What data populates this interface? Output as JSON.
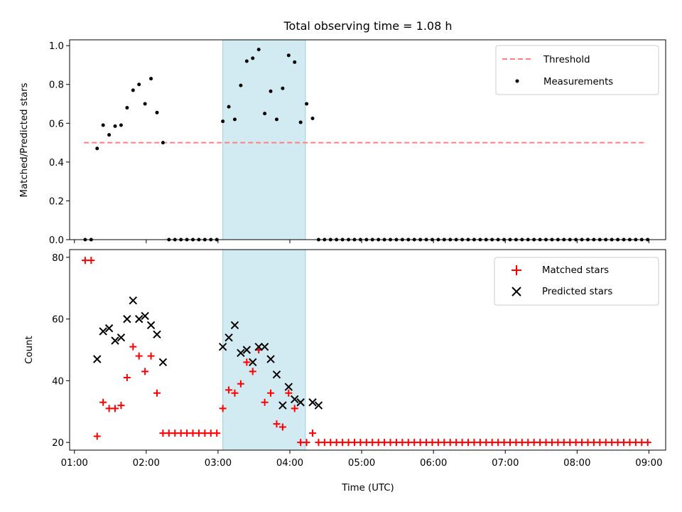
{
  "figure": {
    "title": "Total observing time = 1.08 h",
    "xlabel": "Time (UTC)"
  },
  "chart_data": [
    {
      "type": "scatter",
      "ylabel": "Matched/Predicted stars",
      "xlim": [
        "00:56",
        "09:14"
      ],
      "ylim": [
        0,
        1.03
      ],
      "yticks": [
        "0.0",
        "0.2",
        "0.4",
        "0.6",
        "0.8",
        "1.0"
      ],
      "xticks": [
        "01:00",
        "02:00",
        "03:00",
        "04:00",
        "05:00",
        "06:00",
        "07:00",
        "08:00",
        "09:00"
      ],
      "highlight_span": {
        "x": [
          "03:04",
          "04:13"
        ],
        "color": "#add8e6"
      },
      "legend": {
        "position": "top-right"
      },
      "threshold": {
        "name": "Threshold",
        "value": 0.5,
        "x": [
          "01:08",
          "08:58"
        ],
        "color": "#ff7f7f"
      },
      "series": [
        {
          "name": "Measurements",
          "color": "#000000",
          "x": [
            "01:09",
            "01:14",
            "01:19",
            "01:24",
            "01:29",
            "01:34",
            "01:39",
            "01:44",
            "01:49",
            "01:54",
            "01:59",
            "02:04",
            "02:09",
            "02:14",
            "02:19",
            "02:24",
            "02:29",
            "02:34",
            "02:39",
            "02:44",
            "02:49",
            "02:54",
            "02:59",
            "03:04",
            "03:09",
            "03:14",
            "03:19",
            "03:24",
            "03:29",
            "03:34",
            "03:39",
            "03:44",
            "03:49",
            "03:54",
            "03:59",
            "04:04",
            "04:09",
            "04:14",
            "04:19",
            "04:24",
            "04:29",
            "04:34",
            "04:39",
            "04:44",
            "04:49",
            "04:54",
            "04:59",
            "05:04",
            "05:09",
            "05:14",
            "05:19",
            "05:24",
            "05:29",
            "05:34",
            "05:39",
            "05:44",
            "05:49",
            "05:54",
            "05:59",
            "06:04",
            "06:09",
            "06:14",
            "06:19",
            "06:24",
            "06:29",
            "06:34",
            "06:39",
            "06:44",
            "06:49",
            "06:54",
            "06:59",
            "07:04",
            "07:09",
            "07:14",
            "07:19",
            "07:24",
            "07:29",
            "07:34",
            "07:39",
            "07:44",
            "07:49",
            "07:54",
            "07:59",
            "08:04",
            "08:09",
            "08:14",
            "08:19",
            "08:24",
            "08:29",
            "08:34",
            "08:39",
            "08:44",
            "08:49",
            "08:54",
            "08:59"
          ],
          "y": [
            0,
            0,
            0.47,
            0.59,
            0.54,
            0.585,
            0.59,
            0.68,
            0.77,
            0.8,
            0.7,
            0.83,
            0.655,
            0.5,
            0,
            0,
            0,
            0,
            0,
            0,
            0,
            0,
            0,
            0.61,
            0.685,
            0.62,
            0.795,
            0.92,
            0.935,
            0.98,
            0.65,
            0.765,
            0.62,
            0.78,
            0.95,
            0.915,
            0.605,
            0.7,
            0.625,
            0,
            0,
            0,
            0,
            0,
            0,
            0,
            0,
            0,
            0,
            0,
            0,
            0,
            0,
            0,
            0,
            0,
            0,
            0,
            0,
            0,
            0,
            0,
            0,
            0,
            0,
            0,
            0,
            0,
            0,
            0,
            0,
            0,
            0,
            0,
            0,
            0,
            0,
            0,
            0,
            0,
            0,
            0,
            0,
            0,
            0,
            0,
            0,
            0,
            0,
            0,
            0,
            0,
            0,
            0,
            0
          ]
        }
      ]
    },
    {
      "type": "scatter",
      "ylabel": "Count",
      "xlim": [
        "00:56",
        "09:14"
      ],
      "ylim": [
        17.5,
        82.5
      ],
      "yticks": [
        "20",
        "40",
        "60",
        "80"
      ],
      "xticks": [
        "01:00",
        "02:00",
        "03:00",
        "04:00",
        "05:00",
        "06:00",
        "07:00",
        "08:00",
        "09:00"
      ],
      "highlight_span": {
        "x": [
          "03:04",
          "04:13"
        ],
        "color": "#add8e6"
      },
      "legend": {
        "position": "top-right"
      },
      "series": [
        {
          "name": "Matched stars",
          "marker": "plus",
          "color": "#ff0000",
          "x": [
            "01:09",
            "01:14",
            "01:19",
            "01:24",
            "01:29",
            "01:34",
            "01:39",
            "01:44",
            "01:49",
            "01:54",
            "01:59",
            "02:04",
            "02:09",
            "02:14",
            "02:19",
            "02:24",
            "02:29",
            "02:34",
            "02:39",
            "02:44",
            "02:49",
            "02:54",
            "02:59",
            "03:04",
            "03:09",
            "03:14",
            "03:19",
            "03:24",
            "03:29",
            "03:34",
            "03:39",
            "03:44",
            "03:49",
            "03:54",
            "03:59",
            "04:04",
            "04:09",
            "04:14",
            "04:19",
            "04:24",
            "04:29",
            "04:34",
            "04:39",
            "04:44",
            "04:49",
            "04:54",
            "04:59",
            "05:04",
            "05:09",
            "05:14",
            "05:19",
            "05:24",
            "05:29",
            "05:34",
            "05:39",
            "05:44",
            "05:49",
            "05:54",
            "05:59",
            "06:04",
            "06:09",
            "06:14",
            "06:19",
            "06:24",
            "06:29",
            "06:34",
            "06:39",
            "06:44",
            "06:49",
            "06:54",
            "06:59",
            "07:04",
            "07:09",
            "07:14",
            "07:19",
            "07:24",
            "07:29",
            "07:34",
            "07:39",
            "07:44",
            "07:49",
            "07:54",
            "07:59",
            "08:04",
            "08:09",
            "08:14",
            "08:19",
            "08:24",
            "08:29",
            "08:34",
            "08:39",
            "08:44",
            "08:49",
            "08:54",
            "08:59"
          ],
          "y": [
            79,
            79,
            22,
            33,
            31,
            31,
            32,
            41,
            51,
            48,
            43,
            48,
            36,
            23,
            23,
            23,
            23,
            23,
            23,
            23,
            23,
            23,
            23,
            31,
            37,
            36,
            39,
            46,
            43,
            50,
            33,
            36,
            26,
            25,
            36,
            31,
            20,
            20,
            23,
            20,
            20,
            20,
            20,
            20,
            20,
            20,
            20,
            20,
            20,
            20,
            20,
            20,
            20,
            20,
            20,
            20,
            20,
            20,
            20,
            20,
            20,
            20,
            20,
            20,
            20,
            20,
            20,
            20,
            20,
            20,
            20,
            20,
            20,
            20,
            20,
            20,
            20,
            20,
            20,
            20,
            20,
            20,
            20,
            20,
            20,
            20,
            20,
            20,
            20,
            20,
            20,
            20,
            20,
            20,
            20
          ]
        },
        {
          "name": "Predicted stars",
          "marker": "x",
          "color": "#000000",
          "x": [
            "01:19",
            "01:24",
            "01:29",
            "01:34",
            "01:39",
            "01:44",
            "01:49",
            "01:54",
            "01:59",
            "02:04",
            "02:09",
            "02:14",
            "03:04",
            "03:09",
            "03:14",
            "03:19",
            "03:24",
            "03:29",
            "03:34",
            "03:39",
            "03:44",
            "03:49",
            "03:54",
            "03:59",
            "04:04",
            "04:09",
            "04:19",
            "04:24"
          ],
          "y": [
            47,
            56,
            57,
            53,
            54,
            60,
            66,
            60,
            61,
            58,
            55,
            46,
            51,
            54,
            58,
            49,
            50,
            46,
            51,
            51,
            47,
            42,
            32,
            38,
            34,
            33,
            33,
            32
          ]
        }
      ]
    }
  ]
}
